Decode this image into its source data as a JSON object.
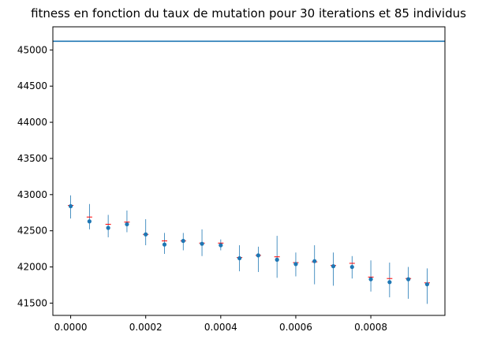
{
  "chart_data": {
    "type": "scatter",
    "title": "fitness en fonction du taux de mutation pour 30 iterations et 85 individus",
    "xlabel": "",
    "ylabel": "",
    "xlim": [
      -4.75e-05,
      0.0009975
    ],
    "ylim": [
      41330,
      45320
    ],
    "grid": false,
    "xticks": [
      0.0,
      0.0002,
      0.0004,
      0.0006,
      0.0008
    ],
    "xtick_labels": [
      "0.0000",
      "0.0002",
      "0.0004",
      "0.0006",
      "0.0008"
    ],
    "yticks": [
      41500,
      42000,
      42500,
      43000,
      43500,
      44000,
      44500,
      45000
    ],
    "ytick_labels": [
      "41500",
      "42000",
      "42500",
      "43000",
      "43500",
      "44000",
      "44500",
      "45000"
    ],
    "reference_line": {
      "y": 45120,
      "color": "#1f77b4"
    },
    "series": [
      {
        "kind": "errorbar",
        "color": "#1f77b4",
        "x": [
          0.0,
          5e-05,
          0.0001,
          0.00015,
          0.0002,
          0.00025,
          0.0003,
          0.00035,
          0.0004,
          0.00045,
          0.0005,
          0.00055,
          0.0006,
          0.00065,
          0.0007,
          0.00075,
          0.0008,
          0.00085,
          0.0009,
          0.00095
        ],
        "y": [
          42840,
          42630,
          42540,
          42590,
          42450,
          42310,
          42360,
          42320,
          42300,
          42120,
          42160,
          42100,
          42040,
          42080,
          42010,
          42000,
          41830,
          41790,
          41830,
          41760
        ],
        "ylow": [
          42670,
          42520,
          42410,
          42480,
          42300,
          42180,
          42230,
          42150,
          42230,
          41940,
          41930,
          41850,
          41870,
          41760,
          41740,
          41840,
          41660,
          41580,
          41560,
          41490
        ],
        "yhigh": [
          42990,
          42870,
          42720,
          42780,
          42660,
          42470,
          42470,
          42520,
          42380,
          42300,
          42280,
          42430,
          42200,
          42300,
          42200,
          42150,
          42090,
          42060,
          42000,
          41980
        ]
      },
      {
        "kind": "marker",
        "color": "#ff0000",
        "x": [
          0.0,
          5e-05,
          0.0001,
          0.00015,
          0.0002,
          0.00025,
          0.0003,
          0.00035,
          0.0004,
          0.00045,
          0.0005,
          0.00055,
          0.0006,
          0.00065,
          0.0007,
          0.00075,
          0.0008,
          0.00085,
          0.0009,
          0.00095
        ],
        "y": [
          42850,
          42690,
          42590,
          42620,
          42450,
          42360,
          42360,
          42330,
          42330,
          42130,
          42160,
          42140,
          42060,
          42070,
          42020,
          42050,
          41860,
          41840,
          41840,
          41780
        ]
      }
    ]
  }
}
